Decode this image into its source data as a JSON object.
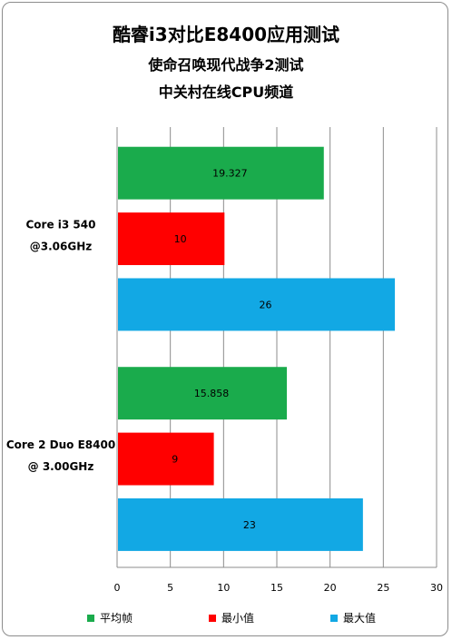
{
  "chart_data": {
    "type": "bar",
    "orientation": "horizontal",
    "title": "酷睿i3对比E8400应用测试",
    "subtitle": "使命召唤现代战争2测试",
    "subtitle2": "中关村在线CPU频道",
    "categories": [
      "Core i3 540\n@3.06GHz",
      "Core 2 Duo E8400\n@ 3.00GHz"
    ],
    "series": [
      {
        "name": "平均帧",
        "color": "#1aab4c",
        "values": [
          19.327,
          15.858
        ]
      },
      {
        "name": "最小值",
        "color": "#ff0000",
        "values": [
          10,
          9
        ]
      },
      {
        "name": "最大值",
        "color": "#12a8e4",
        "values": [
          26,
          23
        ]
      }
    ],
    "xlim": [
      0,
      30
    ],
    "xticks": [
      0,
      5,
      10,
      15,
      20,
      25,
      30
    ],
    "grid": true,
    "legend_position": "bottom",
    "data_labels": true
  }
}
